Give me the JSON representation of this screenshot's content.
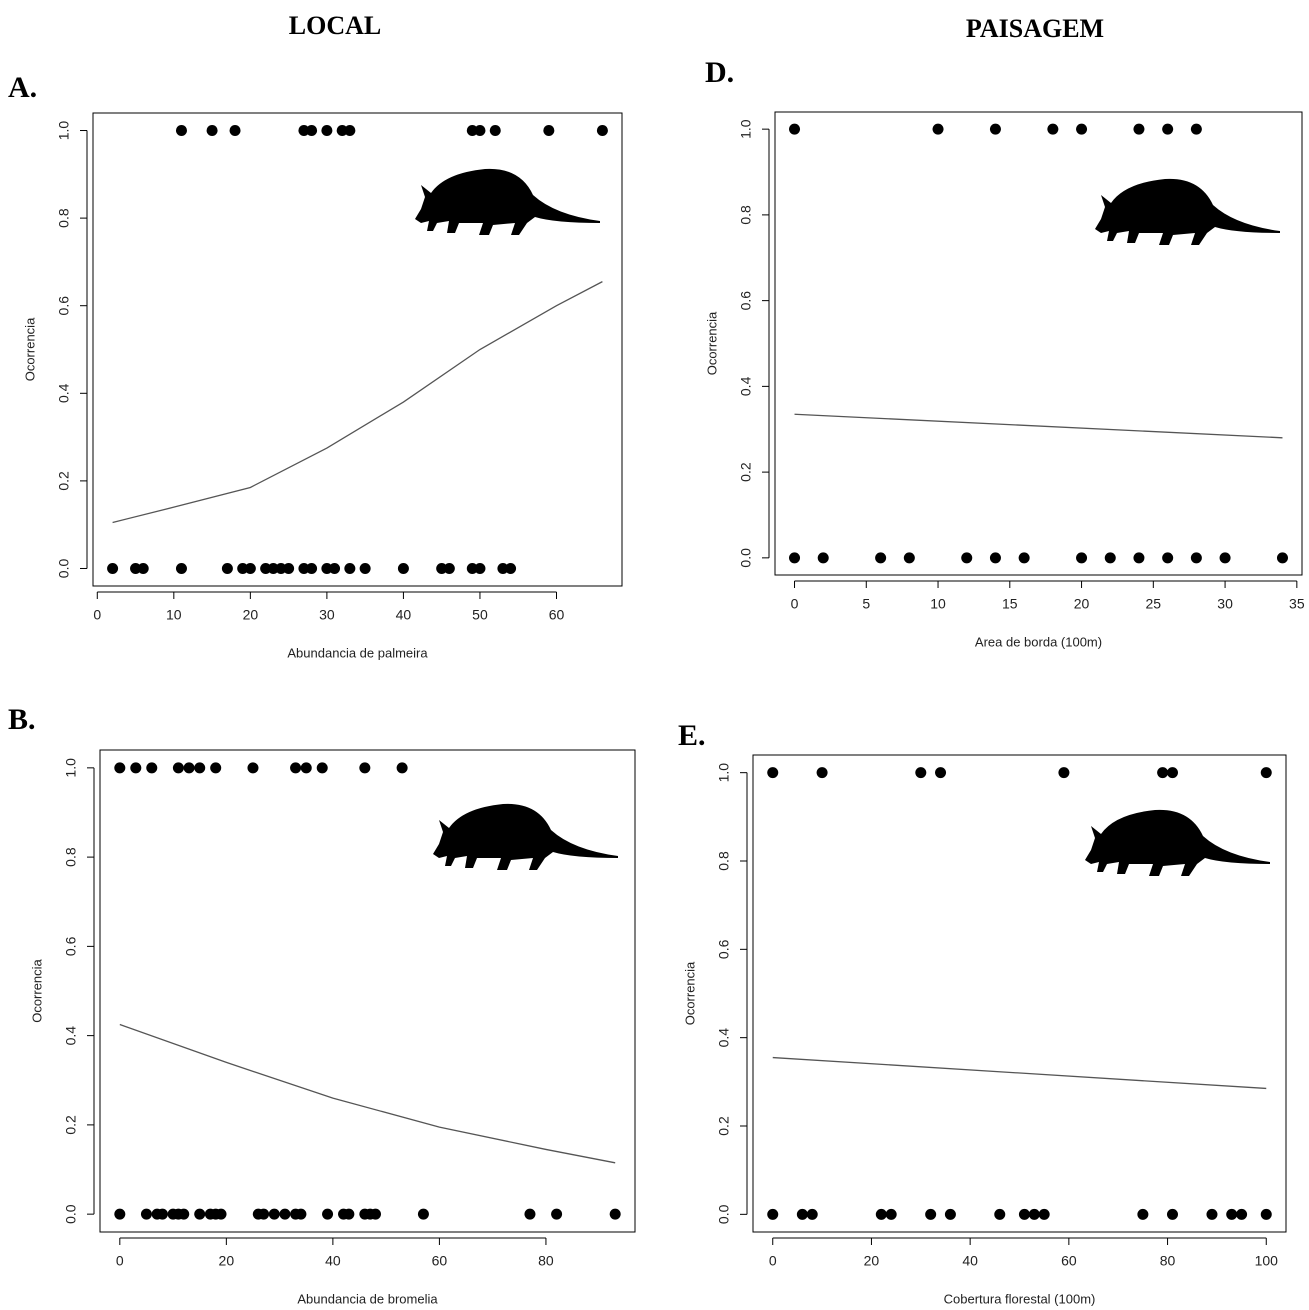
{
  "headers": [
    "LOCAL",
    "PAISAGEM"
  ],
  "chart_data": [
    {
      "type": "scatter",
      "title": "A.",
      "xlabel": "Abundancia de palmeira",
      "ylabel": "Ocorrencia",
      "xlim": [
        -0.56,
        68.56
      ],
      "ylim": [
        -0.04,
        1.04
      ],
      "xticks": [
        0,
        10,
        20,
        30,
        40,
        50,
        60
      ],
      "yticks": [
        {
          "value": 0,
          "label": "0.0"
        },
        0.2,
        0.4,
        0.6,
        0.8,
        {
          "value": 1,
          "label": "1.0"
        }
      ],
      "point_color": "#000000",
      "line_color": "#555555",
      "points": {
        "x": [
          11,
          15,
          18,
          27,
          28,
          30,
          32,
          33,
          49,
          50,
          52,
          59,
          66,
          2,
          5,
          6,
          11,
          17,
          19,
          20,
          22,
          23,
          24,
          25,
          27,
          28,
          30,
          31,
          33,
          35,
          40,
          45,
          46,
          49,
          50,
          53,
          54
        ],
        "y": [
          1,
          1,
          1,
          1,
          1,
          1,
          1,
          1,
          1,
          1,
          1,
          1,
          1,
          0,
          0,
          0,
          0,
          0,
          0,
          0,
          0,
          0,
          0,
          0,
          0,
          0,
          0,
          0,
          0,
          0,
          0,
          0,
          0,
          0,
          0,
          0,
          0
        ]
      },
      "curve": {
        "x": [
          2,
          10,
          20,
          30,
          40,
          50,
          60,
          66
        ],
        "y": [
          0.105,
          0.14,
          0.185,
          0.275,
          0.38,
          0.5,
          0.6,
          0.655
        ]
      }
    },
    {
      "type": "scatter",
      "title": "D.",
      "xlabel": "Area de borda (100m)",
      "ylabel": "Ocorrencia",
      "xlim": [
        -1.36,
        35.36
      ],
      "ylim": [
        -0.04,
        1.04
      ],
      "xticks": [
        0,
        5,
        10,
        15,
        20,
        25,
        30,
        35
      ],
      "yticks": [
        {
          "value": 0,
          "label": "0.0"
        },
        0.2,
        0.4,
        0.6,
        0.8,
        {
          "value": 1,
          "label": "1.0"
        }
      ],
      "point_color": "#000000",
      "line_color": "#555555",
      "points": {
        "x": [
          0,
          10,
          14,
          18,
          20,
          24,
          26,
          28,
          0,
          2,
          6,
          8,
          12,
          14,
          16,
          20,
          22,
          24,
          26,
          28,
          30,
          34
        ],
        "y": [
          1,
          1,
          1,
          1,
          1,
          1,
          1,
          1,
          0,
          0,
          0,
          0,
          0,
          0,
          0,
          0,
          0,
          0,
          0,
          0,
          0,
          0
        ]
      },
      "curve": {
        "x": [
          0,
          34
        ],
        "y": [
          0.335,
          0.28
        ]
      }
    },
    {
      "type": "scatter",
      "title": "B.",
      "xlabel": "Abundancia de bromelia",
      "ylabel": "Ocorrencia",
      "xlim": [
        -3.72,
        96.72
      ],
      "ylim": [
        -0.04,
        1.04
      ],
      "xticks": [
        0,
        20,
        40,
        60,
        80
      ],
      "yticks": [
        {
          "value": 0,
          "label": "0.0"
        },
        0.2,
        0.4,
        0.6,
        0.8,
        {
          "value": 1,
          "label": "1.0"
        }
      ],
      "point_color": "#000000",
      "line_color": "#555555",
      "points": {
        "x": [
          0,
          3,
          6,
          11,
          13,
          15,
          18,
          25,
          33,
          35,
          38,
          46,
          53,
          0,
          5,
          7,
          8,
          10,
          11,
          12,
          15,
          17,
          18,
          19,
          26,
          27,
          29,
          31,
          33,
          34,
          39,
          42,
          43,
          46,
          47,
          48,
          57,
          77,
          82,
          93
        ],
        "y": [
          1,
          1,
          1,
          1,
          1,
          1,
          1,
          1,
          1,
          1,
          1,
          1,
          1,
          0,
          0,
          0,
          0,
          0,
          0,
          0,
          0,
          0,
          0,
          0,
          0,
          0,
          0,
          0,
          0,
          0,
          0,
          0,
          0,
          0,
          0,
          0,
          0,
          0,
          0,
          0
        ]
      },
      "curve": {
        "x": [
          0,
          20,
          40,
          60,
          80,
          93
        ],
        "y": [
          0.425,
          0.34,
          0.26,
          0.195,
          0.145,
          0.115
        ]
      }
    },
    {
      "type": "scatter",
      "title": "E.",
      "xlabel": "Cobertura florestal (100m)",
      "ylabel": "Ocorrencia",
      "xlim": [
        -4,
        104
      ],
      "ylim": [
        -0.04,
        1.04
      ],
      "xticks": [
        0,
        20,
        40,
        60,
        80,
        100
      ],
      "yticks": [
        {
          "value": 0,
          "label": "0.0"
        },
        0.2,
        0.4,
        0.6,
        0.8,
        {
          "value": 1,
          "label": "1.0"
        }
      ],
      "point_color": "#000000",
      "line_color": "#555555",
      "points": {
        "x": [
          0,
          10,
          30,
          34,
          59,
          79,
          81,
          100,
          0,
          6,
          8,
          22,
          24,
          32,
          36,
          46,
          51,
          53,
          55,
          75,
          81,
          89,
          93,
          95,
          100
        ],
        "y": [
          1,
          1,
          1,
          1,
          1,
          1,
          1,
          1,
          0,
          0,
          0,
          0,
          0,
          0,
          0,
          0,
          0,
          0,
          0,
          0,
          0,
          0,
          0,
          0,
          0
        ]
      },
      "curve": {
        "x": [
          0,
          100
        ],
        "y": [
          0.355,
          0.285
        ]
      }
    }
  ]
}
